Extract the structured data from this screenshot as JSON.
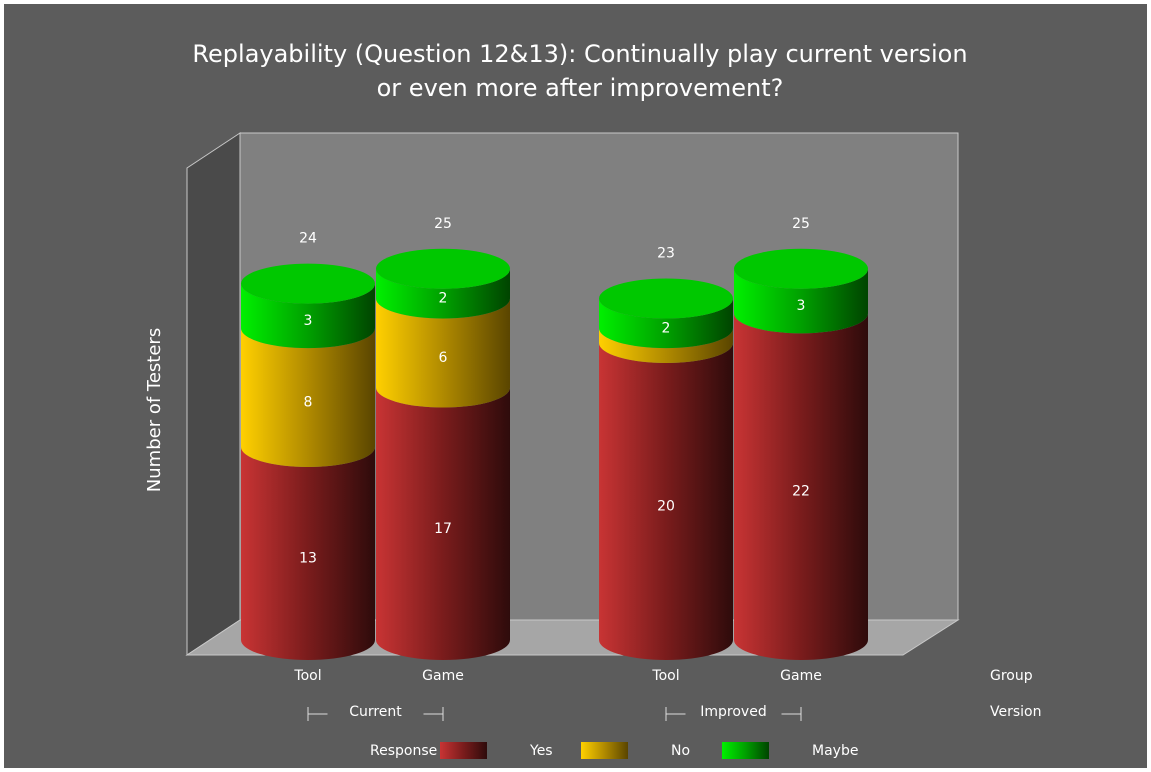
{
  "chart_data": {
    "type": "bar3d-cylinder-stacked",
    "title": [
      "Replayability (Question 12&13): Continually play current version",
      "or even more after improvement?"
    ],
    "y_axis_label": "Number of Testers",
    "categories": [
      "Tool",
      "Game",
      "Tool",
      "Game"
    ],
    "groups": [
      "Current",
      "Current",
      "Improved",
      "Improved"
    ],
    "group_names": [
      "Current",
      "Improved"
    ],
    "category_axis_label": "Group",
    "group_axis_label": "Version",
    "legend_title": "Response",
    "series": [
      {
        "name": "Yes",
        "color": "#b02a2a",
        "values": [
          13,
          17,
          20,
          22
        ]
      },
      {
        "name": "No",
        "color": "#e8b800",
        "values": [
          8,
          6,
          1,
          0
        ],
        "value_labels": [
          "8",
          "6",
          null,
          null
        ]
      },
      {
        "name": "Maybe",
        "color": "#00cc00",
        "values": [
          3,
          2,
          2,
          3
        ]
      }
    ],
    "totals": [
      24,
      25,
      23,
      25
    ],
    "ylim": [
      0,
      33
    ]
  }
}
